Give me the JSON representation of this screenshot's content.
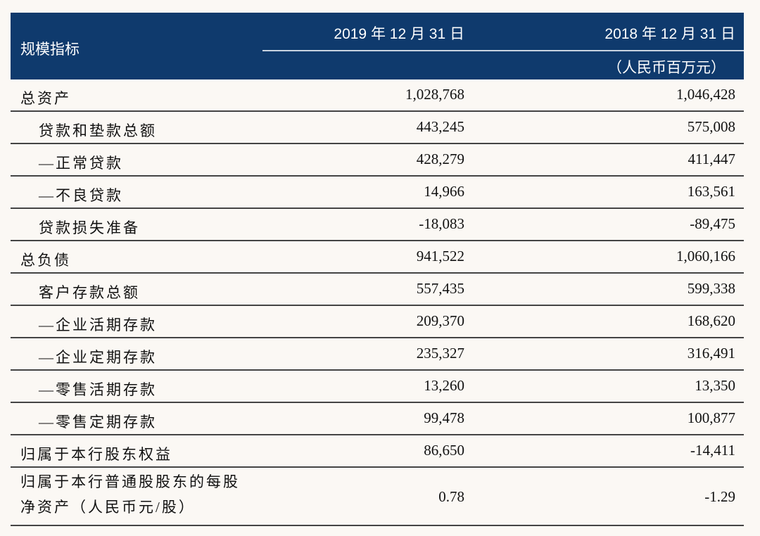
{
  "header": {
    "title": "规模指标",
    "col1": "2019 年 12 月 31 日",
    "col2": "2018 年 12 月 31 日",
    "unit": "（人民币百万元）"
  },
  "table": {
    "rows": [
      [
        "总资产",
        "1,028,768",
        "1,046,428"
      ],
      [
        "贷款和垫款总额",
        "443,245",
        "575,008"
      ],
      [
        "—正常贷款",
        "428,279",
        "411,447"
      ],
      [
        "—不良贷款",
        "14,966",
        "163,561"
      ],
      [
        "贷款损失准备",
        "-18,083",
        "-89,475"
      ],
      [
        "总负债",
        "941,522",
        "1,060,166"
      ],
      [
        "客户存款总额",
        "557,435",
        "599,338"
      ],
      [
        "—企业活期存款",
        "209,370",
        "168,620"
      ],
      [
        "—企业定期存款",
        "235,327",
        "316,491"
      ],
      [
        "—零售活期存款",
        "13,260",
        "13,350"
      ],
      [
        "—零售定期存款",
        "99,478",
        "100,877"
      ],
      [
        "归属于本行股东权益",
        "86,650",
        "-14,411"
      ],
      [
        [
          "归属于本行普通股股东的每股",
          "净资产（人民币元/股）"
        ],
        "0.78",
        "-1.29"
      ]
    ]
  }
}
